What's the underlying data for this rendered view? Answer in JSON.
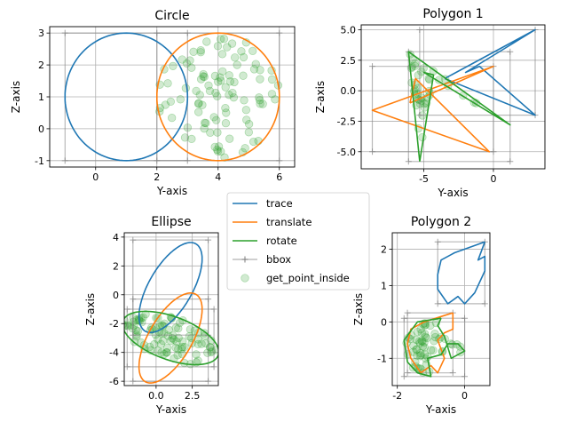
{
  "colors": {
    "trace": "#1f77b4",
    "translate": "#ff7f0e",
    "rotate": "#2ca02c",
    "bbox": "#7f7f7f",
    "points": "#2ca02c"
  },
  "legend": {
    "placement": "center",
    "entries": [
      {
        "label": "trace",
        "marker": "line",
        "color": "#1f77b4"
      },
      {
        "label": "translate",
        "marker": "line",
        "color": "#ff7f0e"
      },
      {
        "label": "rotate",
        "marker": "line",
        "color": "#2ca02c"
      },
      {
        "label": "bbox",
        "marker": "line-plus",
        "color": "#7f7f7f"
      },
      {
        "label": "get_point_inside",
        "marker": "dot",
        "color": "#2ca02c"
      }
    ]
  },
  "chart_data": [
    {
      "type": "line",
      "title": "Circle",
      "xlabel": "Y-axis",
      "ylabel": "Z-axis",
      "grid": true,
      "xlim": [
        -1.5,
        6.5
      ],
      "ylim": [
        -1.2,
        3.2
      ],
      "xticks": [
        0,
        2,
        4,
        6
      ],
      "yticks": [
        -1,
        0,
        1,
        2,
        3
      ],
      "series": [
        {
          "name": "trace",
          "shape": "circle",
          "center": [
            1,
            1
          ],
          "radius": 2
        },
        {
          "name": "translate",
          "shape": "circle",
          "center": [
            4,
            1
          ],
          "radius": 2
        },
        {
          "name": "bbox",
          "polylines": [
            [
              [
                -1,
                -1
              ],
              [
                3,
                -1
              ],
              [
                3,
                3
              ],
              [
                -1,
                3
              ],
              [
                -1,
                -1
              ]
            ],
            [
              [
                2,
                -1
              ],
              [
                6,
                -1
              ],
              [
                6,
                3
              ],
              [
                2,
                3
              ],
              [
                2,
                -1
              ]
            ]
          ]
        },
        {
          "name": "get_point_inside",
          "count": 100,
          "region": {
            "shape": "circle",
            "center": [
              4,
              1
            ],
            "radius": 2
          }
        }
      ]
    },
    {
      "type": "line",
      "title": "Polygon 1",
      "xlabel": "Y-axis",
      "ylabel": "Z-axis",
      "grid": true,
      "xlim": [
        -9.5,
        3.7
      ],
      "ylim": [
        -6.4,
        5.4
      ],
      "xticks": [
        -5,
        0
      ],
      "yticks": [
        -5.0,
        -2.5,
        0.0,
        2.5,
        5.0
      ],
      "series": [
        {
          "name": "trace",
          "points": [
            [
              -3.5,
              1
            ],
            [
              3,
              5
            ],
            [
              -2,
              1.5
            ],
            [
              -1,
              2
            ],
            [
              3,
              -2
            ],
            [
              -3.5,
              1
            ]
          ]
        },
        {
          "name": "translate",
          "points": [
            [
              -6,
              -1
            ],
            [
              0,
              2
            ],
            [
              -8.7,
              -1.6
            ],
            [
              -0.3,
              -5
            ],
            [
              -5.6,
              1
            ],
            [
              -6,
              -1
            ]
          ]
        },
        {
          "name": "rotate",
          "points": [
            [
              -5.3,
              -5.8
            ],
            [
              -6.1,
              3.2
            ],
            [
              1.2,
              -2.8
            ],
            [
              -5,
              1.5
            ],
            [
              -4.3,
              1.3
            ],
            [
              -5.3,
              -5.8
            ]
          ]
        },
        {
          "name": "bbox",
          "polylines": [
            [
              [
                -5.3,
                -2
              ],
              [
                3,
                -2
              ],
              [
                3,
                5
              ],
              [
                -5.3,
                5
              ],
              [
                -5.3,
                -2
              ]
            ],
            [
              [
                -8.7,
                -5
              ],
              [
                0,
                -5
              ],
              [
                0,
                2
              ],
              [
                -8.7,
                2
              ],
              [
                -8.7,
                -5
              ]
            ],
            [
              [
                -6.1,
                -5.8
              ],
              [
                1.2,
                -5.8
              ],
              [
                1.2,
                3.2
              ],
              [
                -6.1,
                3.2
              ],
              [
                -6.1,
                -5.8
              ]
            ]
          ]
        },
        {
          "name": "get_point_inside",
          "count": 40,
          "region": {
            "shape": "polygon",
            "points": [
              [
                -5.3,
                -5.8
              ],
              [
                -6.1,
                3.2
              ],
              [
                1.2,
                -2.8
              ],
              [
                -5,
                1.5
              ],
              [
                -4.3,
                1.3
              ]
            ]
          }
        }
      ]
    },
    {
      "type": "line",
      "title": "Ellipse",
      "xlabel": "Y-axis",
      "ylabel": "Z-axis",
      "grid": true,
      "xlim": [
        -2.2,
        4.3
      ],
      "ylim": [
        -6.3,
        4.3
      ],
      "xticks": [
        0.0,
        2.5
      ],
      "yticks": [
        -6,
        -4,
        -2,
        0,
        2,
        4
      ],
      "series": [
        {
          "name": "trace",
          "shape": "ellipse",
          "center": [
            1,
            0.5
          ],
          "rx": 3.5,
          "ry": 1.5,
          "angle_deg": 60
        },
        {
          "name": "translate",
          "shape": "ellipse",
          "center": [
            1,
            -3
          ],
          "rx": 3.5,
          "ry": 1.5,
          "angle_deg": 60
        },
        {
          "name": "rotate",
          "shape": "ellipse",
          "center": [
            1,
            -3
          ],
          "rx": 3.5,
          "ry": 1.5,
          "angle_deg": 160
        },
        {
          "name": "bbox",
          "polylines": [
            [
              [
                -1.6,
                -2.8
              ],
              [
                3.6,
                -2.8
              ],
              [
                3.6,
                3.8
              ],
              [
                -1.6,
                3.8
              ],
              [
                -1.6,
                -2.8
              ]
            ],
            [
              [
                -1.6,
                -6
              ],
              [
                3.6,
                -6
              ],
              [
                3.6,
                -0.3
              ],
              [
                -1.6,
                -0.3
              ],
              [
                -1.6,
                -6
              ]
            ],
            [
              [
                -2,
                -5
              ],
              [
                4,
                -5
              ],
              [
                4,
                -1
              ],
              [
                -2,
                -1
              ],
              [
                -2,
                -5
              ]
            ]
          ]
        },
        {
          "name": "get_point_inside",
          "count": 100,
          "region": {
            "shape": "ellipse",
            "center": [
              1,
              -3
            ],
            "rx": 3.5,
            "ry": 1.5,
            "angle_deg": 160
          }
        }
      ]
    },
    {
      "type": "line",
      "title": "Polygon 2",
      "xlabel": "Y-axis",
      "ylabel": "Z-axis",
      "grid": true,
      "xlim": [
        -2.15,
        0.75
      ],
      "ylim": [
        -1.75,
        2.45
      ],
      "xticks": [
        -2,
        0
      ],
      "yticks": [
        -1,
        0,
        1,
        2
      ],
      "series": [
        {
          "name": "trace",
          "points": [
            [
              0.6,
              2.2
            ],
            [
              -0.3,
              1.9
            ],
            [
              -0.7,
              1.7
            ],
            [
              -0.8,
              1.3
            ],
            [
              -0.8,
              0.9
            ],
            [
              -0.5,
              0.5
            ],
            [
              -0.2,
              0.7
            ],
            [
              0,
              0.5
            ],
            [
              0.3,
              0.8
            ],
            [
              0.6,
              1.4
            ],
            [
              0.6,
              1.8
            ],
            [
              0.4,
              1.7
            ],
            [
              0.6,
              2.2
            ]
          ]
        },
        {
          "name": "translate",
          "points": [
            [
              -0.35,
              0.25
            ],
            [
              -1.2,
              0
            ],
            [
              -1.6,
              -0.2
            ],
            [
              -1.7,
              -0.6
            ],
            [
              -1.6,
              -1
            ],
            [
              -1.3,
              -1.4
            ],
            [
              -1,
              -1.2
            ],
            [
              -0.8,
              -1.4
            ],
            [
              -0.6,
              -1
            ],
            [
              -0.8,
              -0.5
            ],
            [
              -0.6,
              -0.3
            ],
            [
              -0.35,
              -0.2
            ],
            [
              -0.35,
              0.25
            ]
          ]
        },
        {
          "name": "rotate",
          "points": [
            [
              -0.7,
              0.1
            ],
            [
              -1.4,
              0
            ],
            [
              -1.8,
              -0.5
            ],
            [
              -1.7,
              -1.1
            ],
            [
              -1.4,
              -1.4
            ],
            [
              -1,
              -1.5
            ],
            [
              -1.1,
              -1
            ],
            [
              -0.7,
              -0.9
            ],
            [
              -0.5,
              -0.6
            ],
            [
              -0.2,
              -0.6
            ],
            [
              0,
              -0.8
            ],
            [
              -0.4,
              -1
            ],
            [
              -0.6,
              -0.4
            ],
            [
              -0.8,
              -0.1
            ],
            [
              -0.7,
              0.1
            ]
          ]
        },
        {
          "name": "bbox",
          "polylines": [
            [
              [
                -0.8,
                0.5
              ],
              [
                0.6,
                0.5
              ],
              [
                0.6,
                2.2
              ],
              [
                -0.8,
                2.2
              ],
              [
                -0.8,
                0.5
              ]
            ],
            [
              [
                -1.7,
                -1.4
              ],
              [
                -0.35,
                -1.4
              ],
              [
                -0.35,
                0.25
              ],
              [
                -1.7,
                0.25
              ],
              [
                -1.7,
                -1.4
              ]
            ],
            [
              [
                -1.8,
                -1.5
              ],
              [
                0,
                -1.5
              ],
              [
                0,
                0.1
              ],
              [
                -1.8,
                0.1
              ],
              [
                -1.8,
                -1.5
              ]
            ]
          ]
        },
        {
          "name": "get_point_inside",
          "count": 60,
          "region": {
            "shape": "polygon",
            "points": [
              [
                -0.7,
                0.1
              ],
              [
                -1.4,
                0
              ],
              [
                -1.8,
                -0.5
              ],
              [
                -1.7,
                -1.1
              ],
              [
                -1.4,
                -1.4
              ],
              [
                -1,
                -1.5
              ],
              [
                -1.1,
                -1
              ],
              [
                -0.7,
                -0.9
              ],
              [
                -0.5,
                -0.6
              ],
              [
                -0.2,
                -0.6
              ],
              [
                0,
                -0.8
              ],
              [
                -0.4,
                -1
              ],
              [
                -0.6,
                -0.4
              ],
              [
                -0.8,
                -0.1
              ]
            ]
          }
        }
      ]
    }
  ]
}
